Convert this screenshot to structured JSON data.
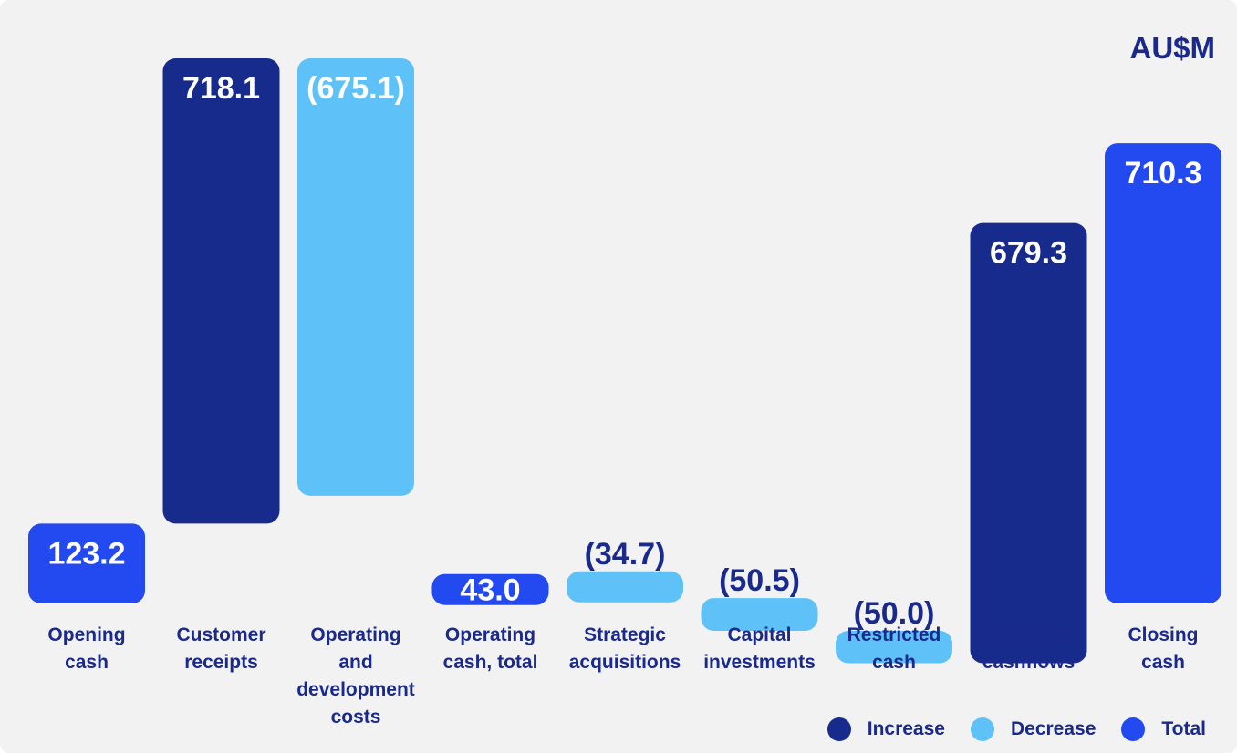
{
  "unit_label": "AU$M",
  "colors": {
    "increase": "#172b8c",
    "decrease": "#5ec2f8",
    "total": "#2349f0",
    "label_on_bar": "#ffffff",
    "label_outside": "#1a2a8c"
  },
  "legend": [
    {
      "key": "increase",
      "label": "Increase"
    },
    {
      "key": "decrease",
      "label": "Decrease"
    },
    {
      "key": "total",
      "label": "Total"
    }
  ],
  "chart_data": {
    "type": "bar",
    "subtype": "waterfall",
    "title": "",
    "xlabel": "",
    "ylabel": "",
    "unit": "AU$M",
    "categories": [
      "Opening\ncash",
      "Customer\nreceipts",
      "Operating\nand\ndevelopment\ncosts",
      "Operating\ncash, total",
      "Strategic\nacquisitions",
      "Capital\ninvestments",
      "Restricted\ncash",
      "Financing\ncashflows",
      "Closing\ncash"
    ],
    "values": [
      123.2,
      718.1,
      -675.1,
      43.0,
      -34.7,
      -50.5,
      -50.0,
      679.3,
      710.3
    ],
    "kinds": [
      "total",
      "increase",
      "decrease",
      "total",
      "decrease",
      "decrease",
      "decrease",
      "increase",
      "total"
    ],
    "data_labels": [
      "123.2",
      "718.1",
      "(675.1)",
      "43.0",
      "(34.7)",
      "(50.5)",
      "(50.0)",
      "679.3",
      "710.3"
    ],
    "grid": false,
    "legend_position": "bottom-right"
  }
}
